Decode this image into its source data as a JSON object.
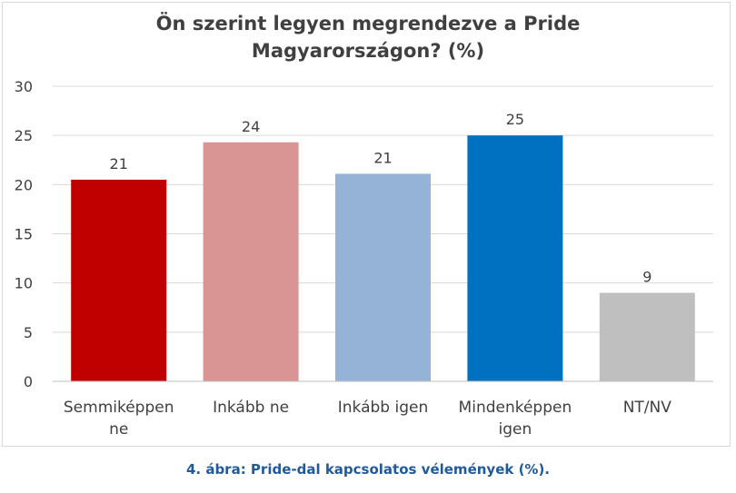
{
  "chart_data": {
    "type": "bar",
    "title_lines": [
      "Ön szerint legyen megrendezve a Pride",
      "Magyarországon? (%)"
    ],
    "categories": [
      [
        "Semmiképpen",
        "ne"
      ],
      [
        "Inkább ne"
      ],
      [
        "Inkább igen"
      ],
      [
        "Mindenképpen",
        "igen"
      ],
      [
        "NT/NV"
      ]
    ],
    "values": [
      21,
      24,
      21,
      25,
      9
    ],
    "data_labels": [
      "21",
      "24",
      "21",
      "25",
      "9"
    ],
    "bar_heights": [
      20.5,
      24.3,
      21.1,
      25.0,
      9.0
    ],
    "colors": [
      "#c00000",
      "#d99594",
      "#95b3d7",
      "#0070c0",
      "#bfbfbf"
    ],
    "ylim": [
      0,
      30
    ],
    "yticks": [
      0,
      5,
      10,
      15,
      20,
      25,
      30
    ],
    "grid": true,
    "legend": "none"
  },
  "caption": "4. ábra: Pride-dal kapcsolatos vélemények (%)."
}
